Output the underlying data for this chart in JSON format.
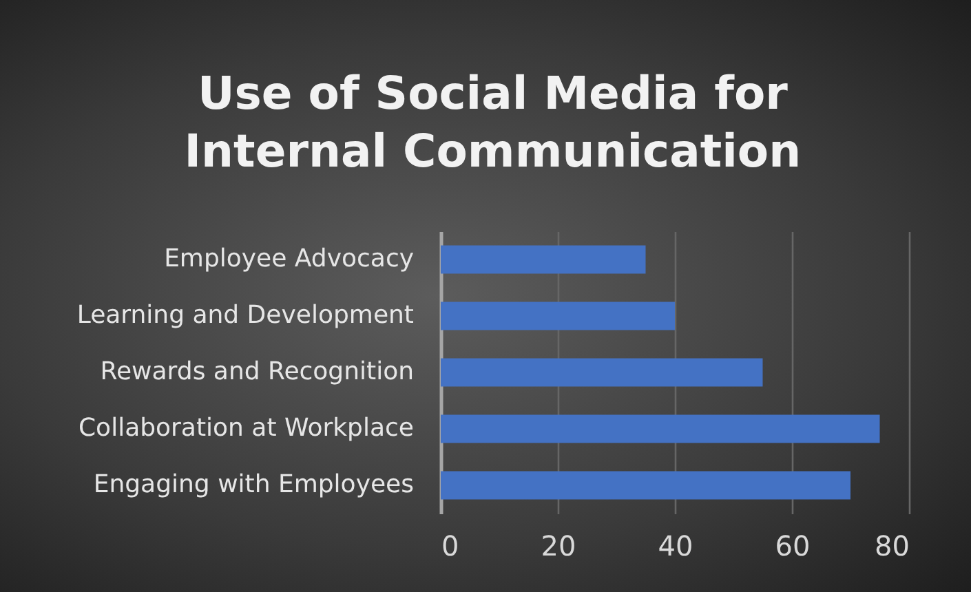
{
  "chart_data": {
    "type": "bar",
    "orientation": "horizontal",
    "title": "Use of Social Media for Internal Communication",
    "categories": [
      "Employee Advocacy",
      "Learning and Development",
      "Rewards and Recognition",
      "Collaboration at Workplace",
      "Engaging with Employees"
    ],
    "values": [
      35,
      40,
      55,
      75,
      70
    ],
    "color": "#4472c4",
    "xlim": [
      0,
      80
    ],
    "xticks": [
      0,
      20,
      40,
      60,
      80
    ],
    "grid": "x"
  }
}
